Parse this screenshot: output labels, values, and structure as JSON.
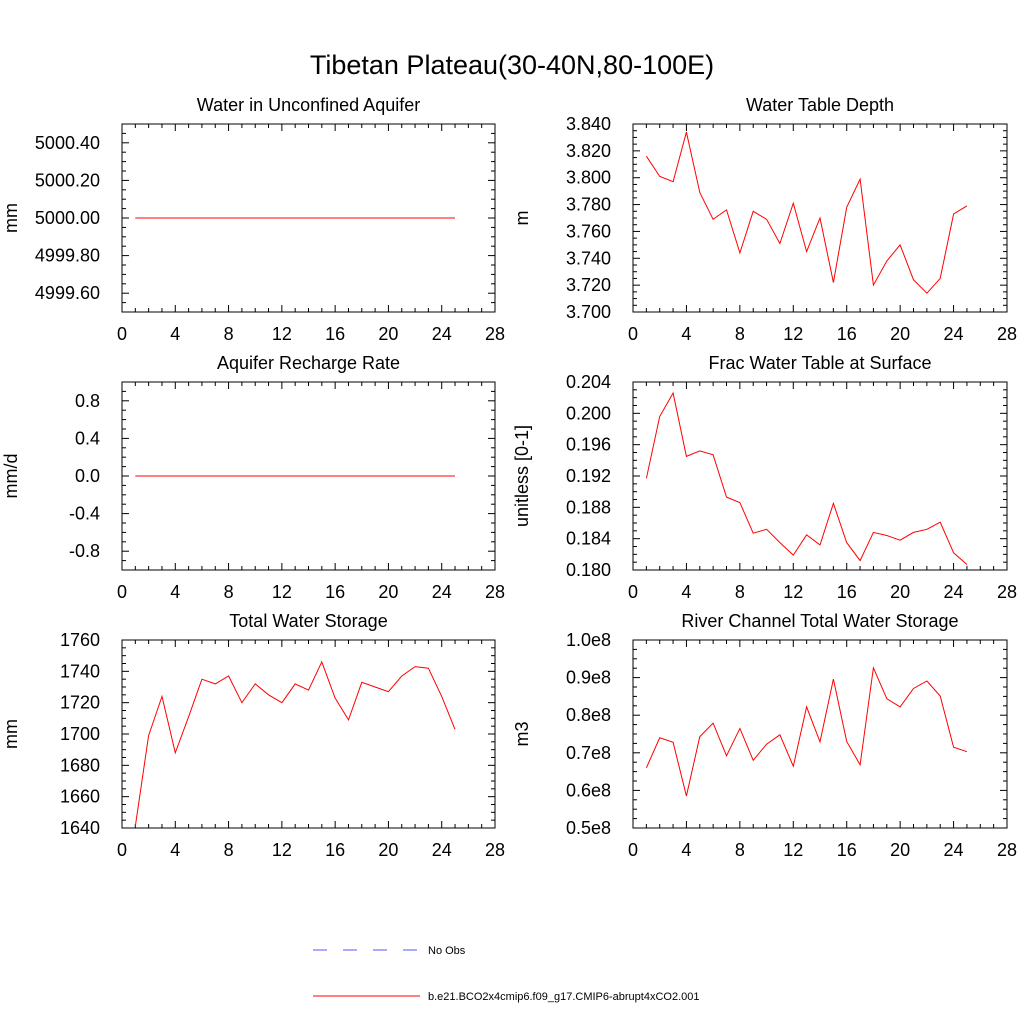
{
  "title": "Tibetan Plateau(30-40N,80-100E)",
  "legend": {
    "obs_label": "No Obs",
    "obs_color": "#5555ff",
    "model_label": "b.e21.BCO2x4cmip6.f09_g17.CMIP6-abrupt4xCO2.001",
    "model_color": "#ff0000"
  },
  "chart_data": [
    {
      "type": "line",
      "title": "Water in Unconfined Aquifer",
      "ylabel": "mm",
      "xlim": [
        0,
        28
      ],
      "xticks": [
        0,
        4,
        8,
        12,
        16,
        20,
        24,
        28
      ],
      "ylim": [
        4999.5,
        5000.5
      ],
      "yticks": [
        4999.6,
        4999.8,
        5000.0,
        5000.2,
        5000.4
      ],
      "ytick_labels": [
        "4999.60",
        "4999.80",
        "5000.00",
        "5000.20",
        "5000.40"
      ],
      "series": [
        {
          "color": "#ff0000",
          "x": [
            1,
            2,
            3,
            4,
            5,
            6,
            7,
            8,
            9,
            10,
            11,
            12,
            13,
            14,
            15,
            16,
            17,
            18,
            19,
            20,
            21,
            22,
            23,
            24,
            25
          ],
          "values": [
            5000,
            5000,
            5000,
            5000,
            5000,
            5000,
            5000,
            5000,
            5000,
            5000,
            5000,
            5000,
            5000,
            5000,
            5000,
            5000,
            5000,
            5000,
            5000,
            5000,
            5000,
            5000,
            5000,
            5000,
            5000
          ]
        }
      ]
    },
    {
      "type": "line",
      "title": "Water Table Depth",
      "ylabel": "m",
      "xlim": [
        0,
        28
      ],
      "xticks": [
        0,
        4,
        8,
        12,
        16,
        20,
        24,
        28
      ],
      "ylim": [
        3.7,
        3.84
      ],
      "yticks": [
        3.7,
        3.72,
        3.74,
        3.76,
        3.78,
        3.8,
        3.82,
        3.84
      ],
      "ytick_labels": [
        "3.700",
        "3.720",
        "3.740",
        "3.760",
        "3.780",
        "3.800",
        "3.820",
        "3.840"
      ],
      "series": [
        {
          "color": "#ff0000",
          "x": [
            1,
            2,
            3,
            4,
            5,
            6,
            7,
            8,
            9,
            10,
            11,
            12,
            13,
            14,
            15,
            16,
            17,
            18,
            19,
            20,
            21,
            22,
            23,
            24,
            25
          ],
          "values": [
            3.816,
            3.801,
            3.797,
            3.834,
            3.789,
            3.769,
            3.776,
            3.744,
            3.775,
            3.769,
            3.751,
            3.781,
            3.745,
            3.77,
            3.722,
            3.778,
            3.799,
            3.72,
            3.738,
            3.75,
            3.724,
            3.714,
            3.725,
            3.773,
            3.779
          ]
        }
      ]
    },
    {
      "type": "line",
      "title": "Aquifer Recharge Rate",
      "ylabel": "mm/d",
      "xlim": [
        0,
        28
      ],
      "xticks": [
        0,
        4,
        8,
        12,
        16,
        20,
        24,
        28
      ],
      "ylim": [
        -1,
        1
      ],
      "yticks": [
        -0.8,
        -0.4,
        0.0,
        0.4,
        0.8
      ],
      "ytick_labels": [
        "-0.8",
        "-0.4",
        "0.0",
        "0.4",
        "0.8"
      ],
      "series": [
        {
          "color": "#ff0000",
          "x": [
            1,
            2,
            3,
            4,
            5,
            6,
            7,
            8,
            9,
            10,
            11,
            12,
            13,
            14,
            15,
            16,
            17,
            18,
            19,
            20,
            21,
            22,
            23,
            24,
            25
          ],
          "values": [
            0,
            0,
            0,
            0,
            0,
            0,
            0,
            0,
            0,
            0,
            0,
            0,
            0,
            0,
            0,
            0,
            0,
            0,
            0,
            0,
            0,
            0,
            0,
            0,
            0
          ]
        }
      ]
    },
    {
      "type": "line",
      "title": "Frac Water Table at Surface",
      "ylabel": "unitless [0-1]",
      "xlim": [
        0,
        28
      ],
      "xticks": [
        0,
        4,
        8,
        12,
        16,
        20,
        24,
        28
      ],
      "ylim": [
        0.18,
        0.204
      ],
      "yticks": [
        0.18,
        0.184,
        0.188,
        0.192,
        0.196,
        0.2,
        0.204
      ],
      "ytick_labels": [
        "0.180",
        "0.184",
        "0.188",
        "0.192",
        "0.196",
        "0.200",
        "0.204"
      ],
      "series": [
        {
          "color": "#ff0000",
          "x": [
            1,
            2,
            3,
            4,
            5,
            6,
            7,
            8,
            9,
            10,
            11,
            12,
            13,
            14,
            15,
            16,
            17,
            18,
            19,
            20,
            21,
            22,
            23,
            24,
            25
          ],
          "values": [
            0.1917,
            0.1996,
            0.2026,
            0.1945,
            0.1952,
            0.1947,
            0.1893,
            0.1886,
            0.1847,
            0.1852,
            0.1835,
            0.1819,
            0.1845,
            0.1832,
            0.1885,
            0.1835,
            0.1812,
            0.1848,
            0.1844,
            0.1838,
            0.1848,
            0.1852,
            0.1861,
            0.1822,
            0.1807
          ]
        }
      ]
    },
    {
      "type": "line",
      "title": "Total Water Storage",
      "ylabel": "mm",
      "xlim": [
        0,
        28
      ],
      "xticks": [
        0,
        4,
        8,
        12,
        16,
        20,
        24,
        28
      ],
      "ylim": [
        1640,
        1760
      ],
      "yticks": [
        1640,
        1660,
        1680,
        1700,
        1720,
        1740,
        1760
      ],
      "ytick_labels": [
        "1640",
        "1660",
        "1680",
        "1700",
        "1720",
        "1740",
        "1760"
      ],
      "series": [
        {
          "color": "#ff0000",
          "x": [
            1,
            2,
            3,
            4,
            5,
            6,
            7,
            8,
            9,
            10,
            11,
            12,
            13,
            14,
            15,
            16,
            17,
            18,
            19,
            20,
            21,
            22,
            23,
            24,
            25
          ],
          "values": [
            1641,
            1699,
            1724,
            1688,
            1711,
            1735,
            1732,
            1737,
            1720,
            1732,
            1725,
            1720,
            1732,
            1728,
            1746,
            1723,
            1709,
            1733,
            1730,
            1727,
            1737,
            1743,
            1742,
            1724,
            1703
          ]
        }
      ]
    },
    {
      "type": "line",
      "title": "River Channel Total Water Storage",
      "ylabel": "m3",
      "xlim": [
        0,
        28
      ],
      "xticks": [
        0,
        4,
        8,
        12,
        16,
        20,
        24,
        28
      ],
      "ylim": [
        50000000,
        100000000
      ],
      "yticks": [
        50000000,
        60000000,
        70000000,
        80000000,
        90000000,
        100000000
      ],
      "ytick_labels": [
        "0.5e8",
        "0.6e8",
        "0.7e8",
        "0.8e8",
        "0.9e8",
        "1.0e8"
      ],
      "series": [
        {
          "color": "#ff0000",
          "x": [
            1,
            2,
            3,
            4,
            5,
            6,
            7,
            8,
            9,
            10,
            11,
            12,
            13,
            14,
            15,
            16,
            17,
            18,
            19,
            20,
            21,
            22,
            23,
            24,
            25
          ],
          "values": [
            66000000,
            74000000,
            72800000,
            58500000,
            74300000,
            77900000,
            69200000,
            76500000,
            68000000,
            72300000,
            74800000,
            66400000,
            82200000,
            72900000,
            89600000,
            73000000,
            66800000,
            92600000,
            84400000,
            82200000,
            87100000,
            89100000,
            85100000,
            71500000,
            70300000
          ]
        }
      ]
    }
  ]
}
